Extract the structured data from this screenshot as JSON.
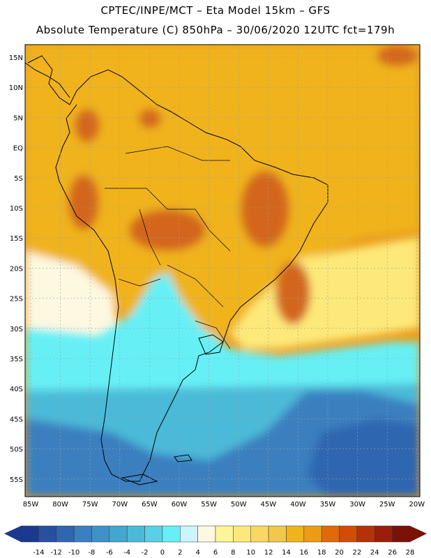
{
  "header": {
    "line1": "CPTEC/INPE/MCT –  Eta Model 15km – GFS",
    "line2": "Absolute Temperature (C) 850hPa – 30/06/2020 12UTC fct=179h"
  },
  "axes": {
    "lat_labels": [
      "15N",
      "10N",
      "5N",
      "EQ",
      "5S",
      "10S",
      "15S",
      "20S",
      "25S",
      "30S",
      "35S",
      "40S",
      "45S",
      "50S",
      "55S"
    ],
    "lon_labels": [
      "85W",
      "80W",
      "75W",
      "70W",
      "65W",
      "60W",
      "55W",
      "50W",
      "45W",
      "40W",
      "35W",
      "30W",
      "25W",
      "20W"
    ]
  },
  "colorbar": {
    "labels": [
      "-14",
      "-12",
      "-10",
      "-8",
      "-6",
      "-4",
      "-2",
      "0",
      "2",
      "4",
      "6",
      "8",
      "10",
      "12",
      "14",
      "16",
      "18",
      "20",
      "22",
      "24",
      "26",
      "28"
    ],
    "colors": [
      "#1a3a8f",
      "#2750a0",
      "#2e66b0",
      "#3a7fbf",
      "#3f92c8",
      "#43a6cf",
      "#4bbad8",
      "#5ad0e6",
      "#66f0f5",
      "#cdf3fb",
      "#fdf8e0",
      "#fdf59a",
      "#fde979",
      "#f8d862",
      "#f2c84c",
      "#f0b31c",
      "#eb9c17",
      "#e06a0a",
      "#d14d06",
      "#b53208",
      "#9a1e0a",
      "#7a1208"
    ],
    "low_end_color": "#1a3a8f",
    "high_end_color": "#7a1208"
  },
  "field_colors": {
    "ocean_north": "#f0b31c",
    "land_warm": "#eb9c17",
    "hot_spot": "#d3661a",
    "warm_yellow": "#fde979",
    "pale": "#fdf8e0",
    "cold_cyan": "#66f0f5",
    "cool_blue": "#4bbad8",
    "deep_blue": "#3a7fbf",
    "darkest": "#2e66b0"
  }
}
